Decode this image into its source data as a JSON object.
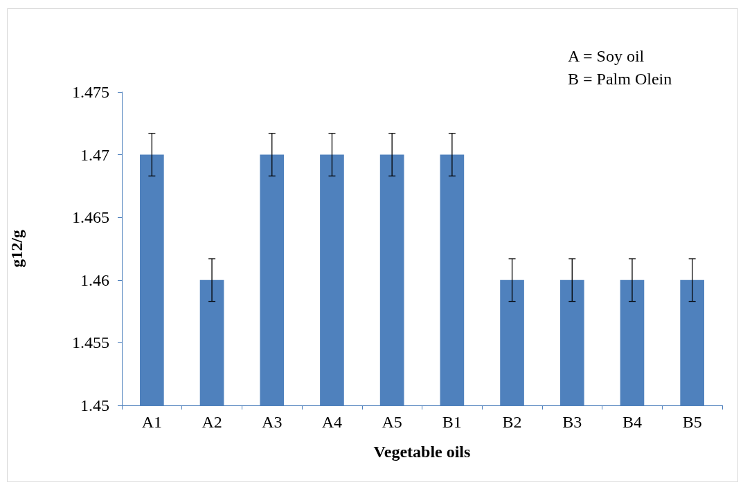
{
  "chart_data": {
    "type": "bar",
    "xlabel": "Vegetable oils",
    "ylabel": "g12/g",
    "categories": [
      "A1",
      "A2",
      "A3",
      "A4",
      "A5",
      "B1",
      "B2",
      "B3",
      "B4",
      "B5"
    ],
    "values": [
      1.47,
      1.46,
      1.47,
      1.47,
      1.47,
      1.47,
      1.46,
      1.46,
      1.46,
      1.46
    ],
    "errors": [
      0.0017,
      0.0017,
      0.0017,
      0.0017,
      0.0017,
      0.0017,
      0.0017,
      0.0017,
      0.0017,
      0.0017
    ],
    "color": "#4f81bd",
    "ylim": [
      1.45,
      1.475
    ],
    "yticks": [
      1.45,
      1.455,
      1.46,
      1.465,
      1.47,
      1.475
    ],
    "grid": false,
    "annotations": [
      "A = Soy oil",
      "B = Palm Olein"
    ]
  }
}
